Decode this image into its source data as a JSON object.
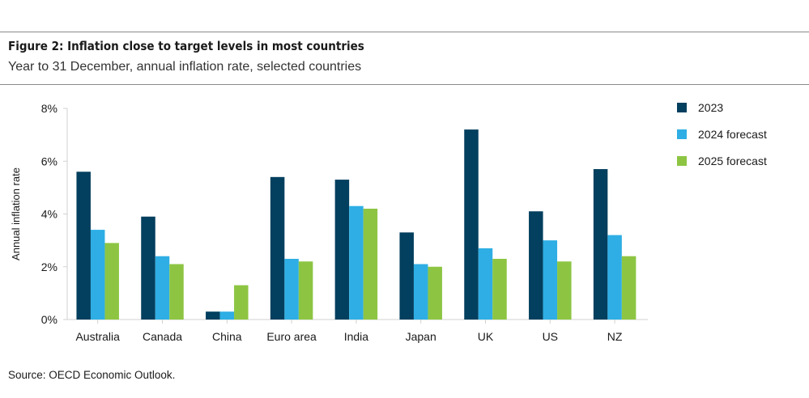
{
  "header": {
    "title": "Figure 2: Inflation close to target levels in most countries",
    "subtitle": "Year to 31 December, annual inflation rate, selected countries"
  },
  "footer": {
    "source": "Source: OECD Economic Outlook."
  },
  "chart_data": {
    "type": "bar",
    "title": "",
    "xlabel": "",
    "ylabel": "Annual inflation rate",
    "ylim": [
      0,
      8
    ],
    "yticks": [
      "0%",
      "2%",
      "4%",
      "6%",
      "8%"
    ],
    "yticks_values": [
      0,
      2,
      4,
      6,
      8
    ],
    "grid": false,
    "legend": "right",
    "categories": [
      "Australia",
      "Canada",
      "China",
      "Euro area",
      "India",
      "Japan",
      "UK",
      "US",
      "NZ"
    ],
    "series": [
      {
        "name": "2023",
        "color": "#033f5e",
        "values": [
          5.6,
          3.9,
          0.3,
          5.4,
          5.3,
          3.3,
          7.2,
          4.1,
          5.7
        ]
      },
      {
        "name": "2024 forecast",
        "color": "#2eaee4",
        "values": [
          3.4,
          2.4,
          0.3,
          2.3,
          4.3,
          2.1,
          2.7,
          3.0,
          3.2
        ]
      },
      {
        "name": "2025 forecast",
        "color": "#8dc543",
        "values": [
          2.9,
          2.1,
          1.3,
          2.2,
          4.2,
          2.0,
          2.3,
          2.2,
          2.4
        ]
      }
    ]
  }
}
